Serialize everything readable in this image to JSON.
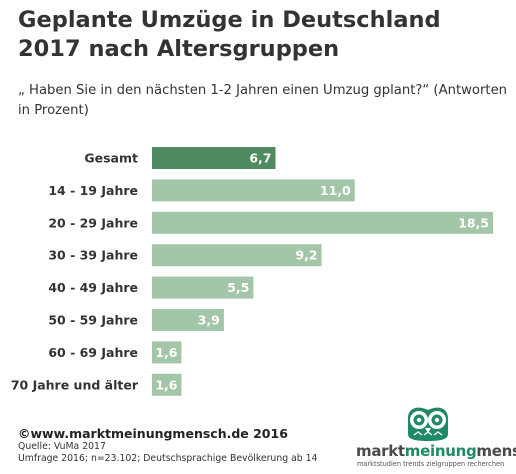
{
  "title": "Geplante Umzüge in Deutschland 2017 nach Altersgruppen",
  "subtitle": "„ Haben Sie in den nächsten 1-2 Jahren einen Umzug gplant?“ (Antworten in Prozent)",
  "colors": {
    "highlight": "#4f8a60",
    "bar": "#a3c6a9",
    "brand": "#1f8a63"
  },
  "chart_data": {
    "type": "bar",
    "orientation": "horizontal",
    "categories": [
      "Gesamt",
      "14 - 19 Jahre",
      "20 - 29 Jahre",
      "30 - 39 Jahre",
      "40 - 49 Jahre",
      "50 - 59 Jahre",
      "60 - 69 Jahre",
      "70 Jahre und älter"
    ],
    "values": [
      6.7,
      11.0,
      18.5,
      9.2,
      5.5,
      3.9,
      1.6,
      1.6
    ],
    "labels": [
      "6,7",
      "11,0",
      "18,5",
      "9,2",
      "5,5",
      "3,9",
      "1,6",
      "1,6"
    ],
    "highlight_index": 0,
    "xlim": [
      0,
      18.5
    ],
    "grid": false,
    "legend": false
  },
  "footer": {
    "copyright": "©www.marktmeinungmensch.de  2016",
    "source": "Quelle: VuMa 2017",
    "note": "Umfrage 2016; n=23.102; Deutschsprachige Bevölkerung ab 14"
  },
  "logo": {
    "part1": "markt",
    "part2": "meinung",
    "part3": "mensch",
    "tagline": "marktstudien trends zielgruppen recherchen",
    "icon": "owl-icon"
  }
}
